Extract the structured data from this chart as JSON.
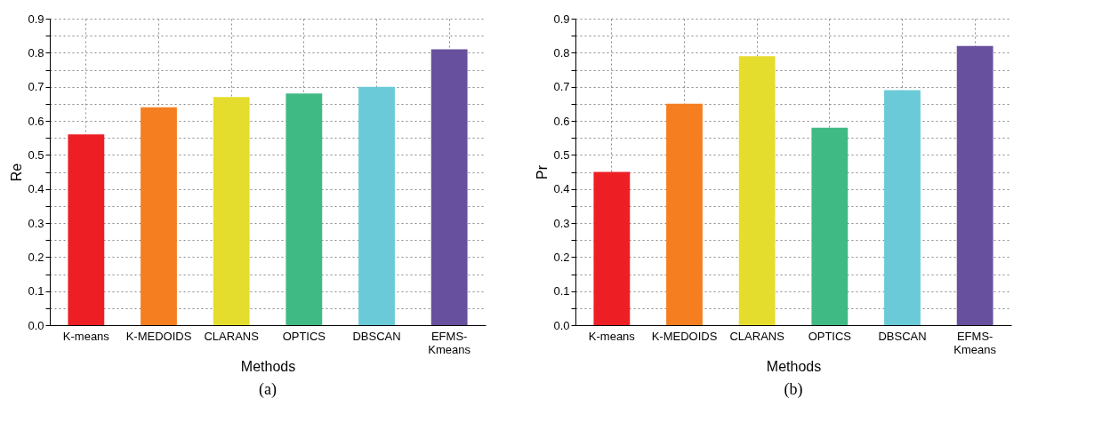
{
  "chart_data": [
    {
      "type": "bar",
      "categories": [
        "K-means",
        "K-MEDOIDS",
        "CLARANS",
        "OPTICS",
        "DBSCAN",
        "EFMS-\nKmeans"
      ],
      "values": [
        0.56,
        0.64,
        0.67,
        0.68,
        0.7,
        0.81
      ],
      "colors": [
        "#ee1f24",
        "#f57f20",
        "#e5dd2e",
        "#3fba84",
        "#6acad8",
        "#67519f"
      ],
      "xlabel": "Methods",
      "ylabel": "Re",
      "ylim": [
        0,
        0.9
      ],
      "yticks": [
        {
          "value": 0,
          "label": "0.0"
        },
        {
          "value": 0.05,
          "label": null
        },
        0.1,
        {
          "value": 0.15,
          "label": null
        },
        0.2,
        {
          "value": 0.25,
          "label": null
        },
        0.3,
        {
          "value": 0.35,
          "label": null
        },
        0.4,
        {
          "value": 0.45,
          "label": null
        },
        0.5,
        {
          "value": 0.55,
          "label": null
        },
        0.6,
        {
          "value": 0.65,
          "label": null
        },
        0.7,
        {
          "value": 0.75,
          "label": null
        },
        0.8,
        {
          "value": 0.85,
          "label": null
        },
        0.9
      ],
      "grid": true,
      "annotations": [
        "(a)"
      ]
    },
    {
      "type": "bar",
      "categories": [
        "K-means",
        "K-MEDOIDS",
        "CLARANS",
        "OPTICS",
        "DBSCAN",
        "EFMS-\nKmeans"
      ],
      "values": [
        0.45,
        0.65,
        0.79,
        0.58,
        0.69,
        0.82
      ],
      "colors": [
        "#ee1f24",
        "#f57f20",
        "#e5dd2e",
        "#3fba84",
        "#6acad8",
        "#67519f"
      ],
      "xlabel": "Methods",
      "ylabel": "Pr",
      "ylim": [
        0,
        0.9
      ],
      "yticks": [
        {
          "value": 0,
          "label": "0.0"
        },
        {
          "value": 0.05,
          "label": null
        },
        0.1,
        {
          "value": 0.15,
          "label": null
        },
        0.2,
        {
          "value": 0.25,
          "label": null
        },
        0.3,
        {
          "value": 0.35,
          "label": null
        },
        0.4,
        {
          "value": 0.45,
          "label": null
        },
        0.5,
        {
          "value": 0.55,
          "label": null
        },
        0.6,
        {
          "value": 0.65,
          "label": null
        },
        0.7,
        {
          "value": 0.75,
          "label": null
        },
        0.8,
        {
          "value": 0.85,
          "label": null
        },
        0.9
      ],
      "grid": true,
      "annotations": [
        "(b)"
      ]
    }
  ]
}
